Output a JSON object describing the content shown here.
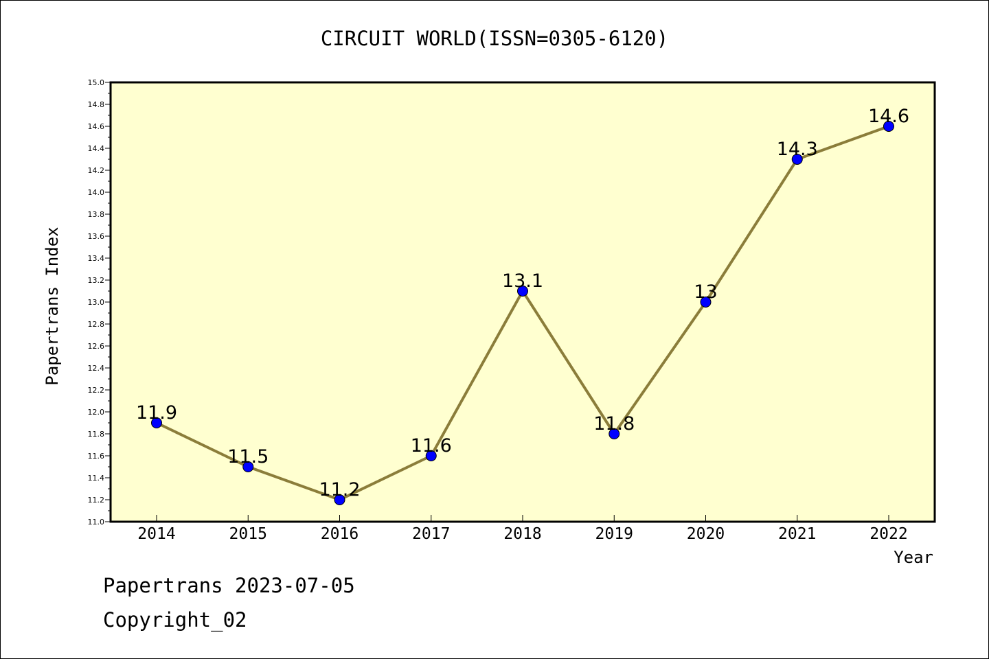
{
  "chart_data": {
    "type": "line",
    "title": "CIRCUIT WORLD(ISSN=0305-6120)",
    "xlabel": "Year",
    "ylabel": "Papertrans Index",
    "categories": [
      "2014",
      "2015",
      "2016",
      "2017",
      "2018",
      "2019",
      "2020",
      "2021",
      "2022"
    ],
    "series": [
      {
        "values": [
          11.9,
          11.5,
          11.2,
          11.6,
          13.1,
          11.8,
          13.0,
          14.3,
          14.6
        ],
        "labels": [
          "11.9",
          "11.5",
          "11.2",
          "11.6",
          "13.1",
          "11.8",
          "13",
          "14.3",
          "14.6"
        ]
      }
    ],
    "ylim": [
      11.0,
      15.0
    ],
    "yticks": [
      "11.0",
      "11.2",
      "11.4",
      "11.6",
      "11.8",
      "12.0",
      "12.2",
      "12.4",
      "12.6",
      "12.8",
      "13.0",
      "13.2",
      "13.4",
      "13.6",
      "13.8",
      "14.0",
      "14.2",
      "14.4",
      "14.6",
      "14.8",
      "15.0"
    ],
    "grid": false,
    "colors": {
      "plot_background": "#ffffd0",
      "line": "#8b7d3a",
      "marker": "#0000ff"
    }
  },
  "footer": {
    "line1": "Papertrans 2023-07-05",
    "line2": "Copyright_02"
  }
}
